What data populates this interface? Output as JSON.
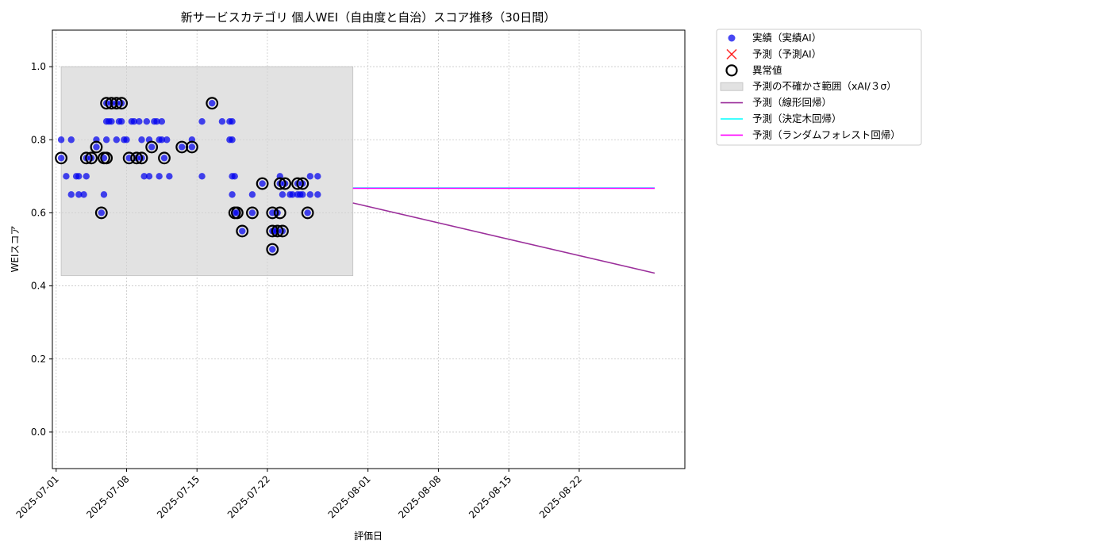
{
  "chart_data": {
    "type": "scatter",
    "title": "新サービスカテゴリ 個人WEI（自由度と自治）スコア推移（30日間）",
    "xlabel": "評価日",
    "ylabel": "WEIスコア",
    "xlim": [
      "2025-06-30T15:00",
      "2025-09-01T12:00"
    ],
    "ylim": [
      -0.1,
      1.1
    ],
    "yticks": [
      0.0,
      0.2,
      0.4,
      0.6,
      0.8,
      1.0
    ],
    "ytick_labels": [
      "0.0",
      "0.2",
      "0.4",
      "0.6",
      "0.8",
      "1.0"
    ],
    "xticks": [
      "2025-07-01",
      "2025-07-08",
      "2025-07-15",
      "2025-07-22",
      "2025-08-01",
      "2025-08-08",
      "2025-08-15",
      "2025-08-22"
    ],
    "grid": true,
    "legend_position": "outside-top-right",
    "uncertainty_band": {
      "label": "予測の不確かさ範囲（xAI/３σ）",
      "x_start": "2025-07-01T12:00",
      "x_end": "2025-07-30T12:00",
      "y_low": 0.428,
      "y_high": 1.0,
      "color": "#d3d3d3"
    },
    "actual": {
      "label": "実績（実績AI）",
      "color": "#0000ee",
      "points": [
        [
          "2025-07-01T12:00",
          0.75
        ],
        [
          "2025-07-01T12:00",
          0.8
        ],
        [
          "2025-07-02T00:00",
          0.7
        ],
        [
          "2025-07-02T12:00",
          0.8
        ],
        [
          "2025-07-02T12:00",
          0.65
        ],
        [
          "2025-07-03T00:00",
          0.7
        ],
        [
          "2025-07-03T06:00",
          0.65
        ],
        [
          "2025-07-03T06:00",
          0.7
        ],
        [
          "2025-07-03T18:00",
          0.65
        ],
        [
          "2025-07-04T00:00",
          0.75
        ],
        [
          "2025-07-04T00:00",
          0.7
        ],
        [
          "2025-07-04T12:00",
          0.75
        ],
        [
          "2025-07-05T00:00",
          0.8
        ],
        [
          "2025-07-05T00:00",
          0.78
        ],
        [
          "2025-07-05T12:00",
          0.6
        ],
        [
          "2025-07-05T18:00",
          0.65
        ],
        [
          "2025-07-05T18:00",
          0.75
        ],
        [
          "2025-07-06T00:00",
          0.8
        ],
        [
          "2025-07-06T00:00",
          0.85
        ],
        [
          "2025-07-06T00:00",
          0.9
        ],
        [
          "2025-07-06T06:00",
          0.85
        ],
        [
          "2025-07-06T12:00",
          0.9
        ],
        [
          "2025-07-06T12:00",
          0.85
        ],
        [
          "2025-07-07T00:00",
          0.9
        ],
        [
          "2025-07-07T00:00",
          0.8
        ],
        [
          "2025-07-07T06:00",
          0.85
        ],
        [
          "2025-07-07T12:00",
          0.85
        ],
        [
          "2025-07-07T12:00",
          0.9
        ],
        [
          "2025-07-07T18:00",
          0.8
        ],
        [
          "2025-07-08T00:00",
          0.8
        ],
        [
          "2025-07-08T06:00",
          0.75
        ],
        [
          "2025-07-08T12:00",
          0.85
        ],
        [
          "2025-07-08T18:00",
          0.85
        ],
        [
          "2025-07-09T00:00",
          0.75
        ],
        [
          "2025-07-09T06:00",
          0.85
        ],
        [
          "2025-07-09T12:00",
          0.75
        ],
        [
          "2025-07-09T12:00",
          0.8
        ],
        [
          "2025-07-09T18:00",
          0.7
        ],
        [
          "2025-07-10T00:00",
          0.85
        ],
        [
          "2025-07-10T06:00",
          0.8
        ],
        [
          "2025-07-10T06:00",
          0.7
        ],
        [
          "2025-07-10T12:00",
          0.78
        ],
        [
          "2025-07-10T18:00",
          0.85
        ],
        [
          "2025-07-11T00:00",
          0.85
        ],
        [
          "2025-07-11T06:00",
          0.8
        ],
        [
          "2025-07-11T06:00",
          0.7
        ],
        [
          "2025-07-11T12:00",
          0.8
        ],
        [
          "2025-07-11T12:00",
          0.85
        ],
        [
          "2025-07-11T18:00",
          0.75
        ],
        [
          "2025-07-12T00:00",
          0.8
        ],
        [
          "2025-07-12T06:00",
          0.7
        ],
        [
          "2025-07-13T12:00",
          0.78
        ],
        [
          "2025-07-14T12:00",
          0.78
        ],
        [
          "2025-07-14T12:00",
          0.8
        ],
        [
          "2025-07-15T12:00",
          0.85
        ],
        [
          "2025-07-15T12:00",
          0.7
        ],
        [
          "2025-07-16T12:00",
          0.9
        ],
        [
          "2025-07-17T12:00",
          0.85
        ],
        [
          "2025-07-18T06:00",
          0.85
        ],
        [
          "2025-07-18T06:00",
          0.8
        ],
        [
          "2025-07-18T12:00",
          0.8
        ],
        [
          "2025-07-18T12:00",
          0.85
        ],
        [
          "2025-07-18T12:00",
          0.65
        ],
        [
          "2025-07-18T12:00",
          0.7
        ],
        [
          "2025-07-18T18:00",
          0.6
        ],
        [
          "2025-07-18T18:00",
          0.7
        ],
        [
          "2025-07-19T00:00",
          0.6
        ],
        [
          "2025-07-19T12:00",
          0.55
        ],
        [
          "2025-07-20T12:00",
          0.6
        ],
        [
          "2025-07-20T12:00",
          0.65
        ],
        [
          "2025-07-21T12:00",
          0.68
        ],
        [
          "2025-07-22T12:00",
          0.6
        ],
        [
          "2025-07-22T12:00",
          0.55
        ],
        [
          "2025-07-22T12:00",
          0.5
        ],
        [
          "2025-07-22T18:00",
          0.55
        ],
        [
          "2025-07-23T00:00",
          0.6
        ],
        [
          "2025-07-23T00:00",
          0.55
        ],
        [
          "2025-07-23T06:00",
          0.68
        ],
        [
          "2025-07-23T06:00",
          0.7
        ],
        [
          "2025-07-23T12:00",
          0.65
        ],
        [
          "2025-07-23T12:00",
          0.55
        ],
        [
          "2025-07-23T18:00",
          0.68
        ],
        [
          "2025-07-24T06:00",
          0.65
        ],
        [
          "2025-07-24T12:00",
          0.65
        ],
        [
          "2025-07-25T00:00",
          0.65
        ],
        [
          "2025-07-25T00:00",
          0.68
        ],
        [
          "2025-07-25T06:00",
          0.65
        ],
        [
          "2025-07-25T12:00",
          0.68
        ],
        [
          "2025-07-25T12:00",
          0.65
        ],
        [
          "2025-07-26T00:00",
          0.6
        ],
        [
          "2025-07-26T06:00",
          0.65
        ],
        [
          "2025-07-26T06:00",
          0.7
        ],
        [
          "2025-07-27T00:00",
          0.65
        ],
        [
          "2025-07-27T00:00",
          0.7
        ]
      ]
    },
    "predicted": {
      "label": "予測（予測AI）",
      "color": "#ff0000",
      "points": []
    },
    "anomalies": {
      "label": "異常値",
      "color": "#000000",
      "points": [
        [
          "2025-07-01T12:00",
          0.75
        ],
        [
          "2025-07-04T00:00",
          0.75
        ],
        [
          "2025-07-04T12:00",
          0.75
        ],
        [
          "2025-07-05T00:00",
          0.78
        ],
        [
          "2025-07-05T12:00",
          0.6
        ],
        [
          "2025-07-05T18:00",
          0.75
        ],
        [
          "2025-07-06T00:00",
          0.9
        ],
        [
          "2025-07-06T00:00",
          0.75
        ],
        [
          "2025-07-06T12:00",
          0.9
        ],
        [
          "2025-07-07T00:00",
          0.9
        ],
        [
          "2025-07-07T12:00",
          0.9
        ],
        [
          "2025-07-08T06:00",
          0.75
        ],
        [
          "2025-07-09T00:00",
          0.75
        ],
        [
          "2025-07-09T12:00",
          0.75
        ],
        [
          "2025-07-10T12:00",
          0.78
        ],
        [
          "2025-07-11T18:00",
          0.75
        ],
        [
          "2025-07-13T12:00",
          0.78
        ],
        [
          "2025-07-14T12:00",
          0.78
        ],
        [
          "2025-07-16T12:00",
          0.9
        ],
        [
          "2025-07-18T18:00",
          0.6
        ],
        [
          "2025-07-19T00:00",
          0.6
        ],
        [
          "2025-07-19T12:00",
          0.55
        ],
        [
          "2025-07-20T12:00",
          0.6
        ],
        [
          "2025-07-21T12:00",
          0.68
        ],
        [
          "2025-07-22T12:00",
          0.6
        ],
        [
          "2025-07-22T12:00",
          0.55
        ],
        [
          "2025-07-22T12:00",
          0.5
        ],
        [
          "2025-07-23T00:00",
          0.55
        ],
        [
          "2025-07-23T06:00",
          0.6
        ],
        [
          "2025-07-23T06:00",
          0.68
        ],
        [
          "2025-07-23T12:00",
          0.55
        ],
        [
          "2025-07-23T18:00",
          0.68
        ],
        [
          "2025-07-25T00:00",
          0.68
        ],
        [
          "2025-07-25T12:00",
          0.68
        ],
        [
          "2025-07-26T00:00",
          0.6
        ]
      ]
    },
    "lines": [
      {
        "label": "予測（線形回帰）",
        "color": "#9b2f9b",
        "points": [
          [
            "2025-07-30T12:00",
            0.627
          ],
          [
            "2025-08-29T12:00",
            0.435
          ]
        ]
      },
      {
        "label": "予測（決定木回帰）",
        "color": "#00ffff",
        "points": [
          [
            "2025-07-30T12:00",
            0.668
          ],
          [
            "2025-08-29T12:00",
            0.668
          ]
        ]
      },
      {
        "label": "予測（ランダムフォレスト回帰）",
        "color": "#ff00ff",
        "points": [
          [
            "2025-07-30T12:00",
            0.667
          ],
          [
            "2025-08-29T12:00",
            0.667
          ]
        ]
      }
    ]
  }
}
